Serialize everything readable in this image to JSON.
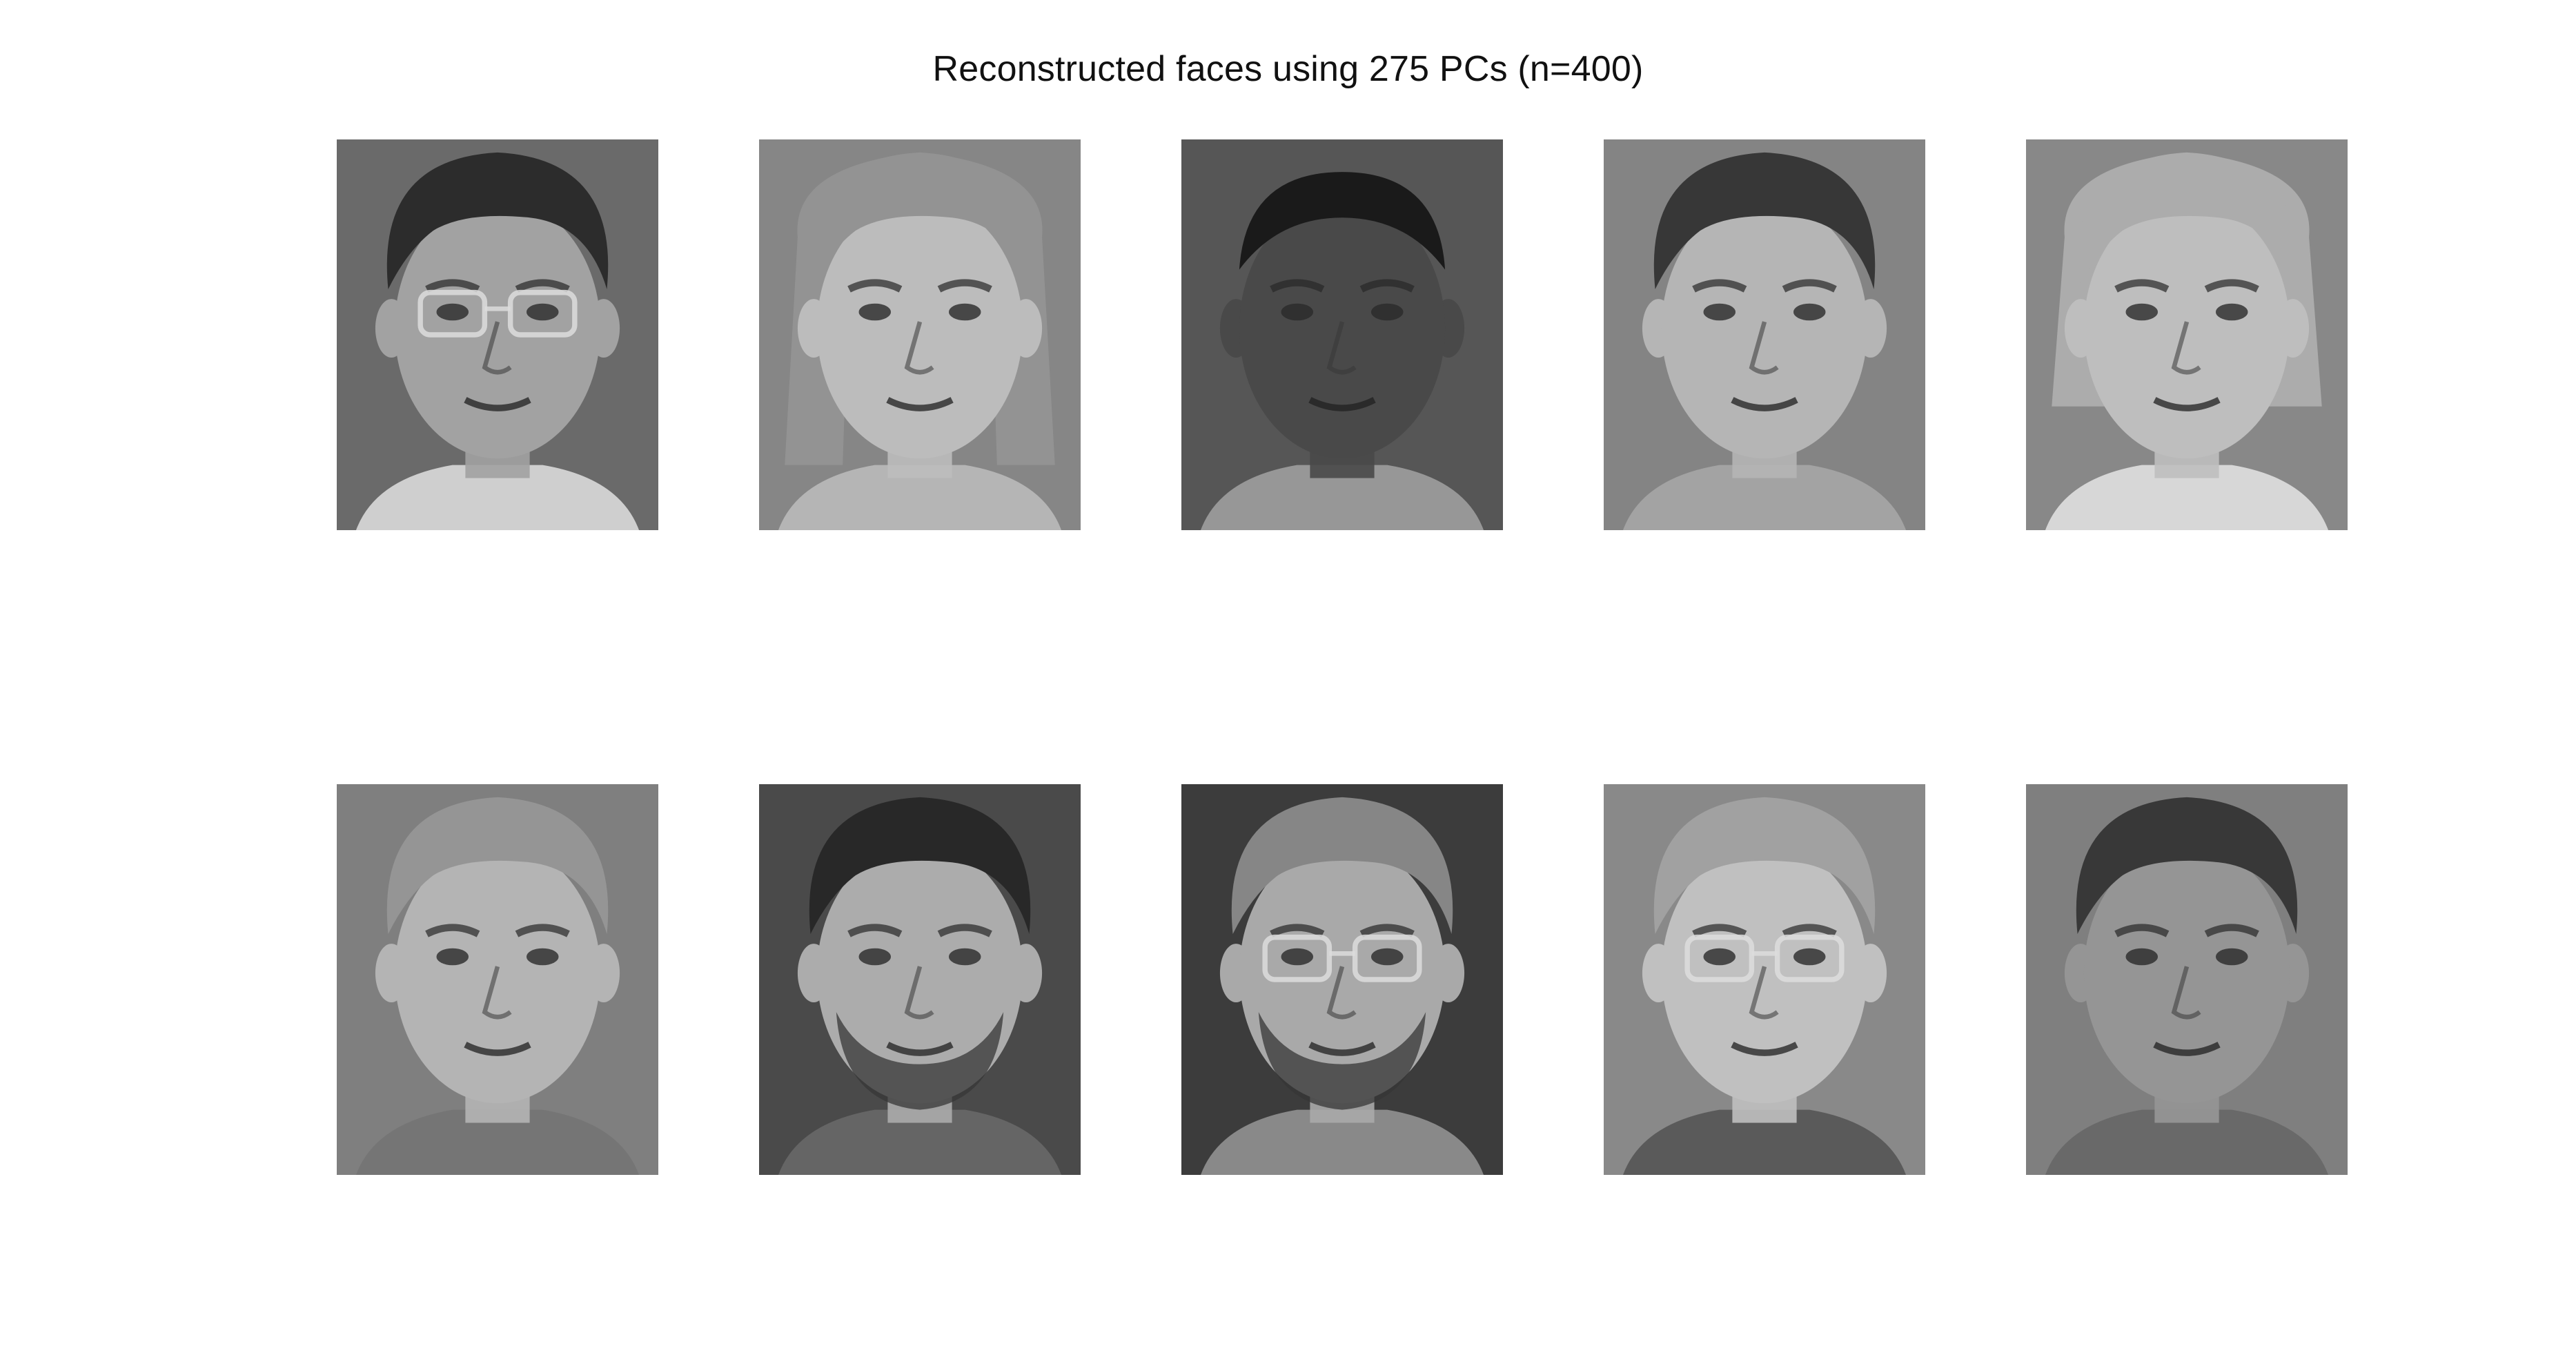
{
  "figure": {
    "title": "Reconstructed faces using 275 PCs (n=400)"
  },
  "faces": [
    {
      "bg": "#6f6f6f",
      "skin": "#a9a9a9",
      "hair": "#2e2e2e",
      "hair_style": "short",
      "glasses": true,
      "beard": false,
      "shirt": "#d8d8d8"
    },
    {
      "bg": "#8c8c8c",
      "skin": "#c4c4c4",
      "hair": "#9a9a9a",
      "hair_style": "long",
      "glasses": false,
      "beard": false,
      "shirt": "#bdbdbd"
    },
    {
      "bg": "#5a5a5a",
      "skin": "#4c4c4c",
      "hair": "#1c1c1c",
      "hair_style": "crop",
      "glasses": false,
      "beard": false,
      "shirt": "#9e9e9e"
    },
    {
      "bg": "#8a8a8a",
      "skin": "#bdbdbd",
      "hair": "#3a3a3a",
      "hair_style": "short",
      "glasses": false,
      "beard": false,
      "shirt": "#aaaaaa"
    },
    {
      "bg": "#8e8e8e",
      "skin": "#c6c6c6",
      "hair": "#b3b3b3",
      "hair_style": "bob",
      "glasses": false,
      "beard": false,
      "shirt": "#e0e0e0"
    },
    {
      "bg": "#858585",
      "skin": "#bcbcbc",
      "hair": "#9c9c9c",
      "hair_style": "short",
      "glasses": false,
      "beard": false,
      "shirt": "#7a7a7a"
    },
    {
      "bg": "#4e4e4e",
      "skin": "#b3b3b3",
      "hair": "#2a2a2a",
      "hair_style": "short",
      "glasses": false,
      "beard": true,
      "shirt": "#6a6a6a"
    },
    {
      "bg": "#3f3f3f",
      "skin": "#b0b0b0",
      "hair": "#8c8c8c",
      "hair_style": "short",
      "glasses": true,
      "beard": true,
      "shirt": "#8f8f8f"
    },
    {
      "bg": "#8f8f8f",
      "skin": "#c8c8c8",
      "hair": "#a8a8a8",
      "hair_style": "short",
      "glasses": true,
      "beard": false,
      "shirt": "#5e5e5e"
    },
    {
      "bg": "#858585",
      "skin": "#9c9c9c",
      "hair": "#3b3b3b",
      "hair_style": "short",
      "glasses": false,
      "beard": false,
      "shirt": "#6e6e6e"
    }
  ]
}
